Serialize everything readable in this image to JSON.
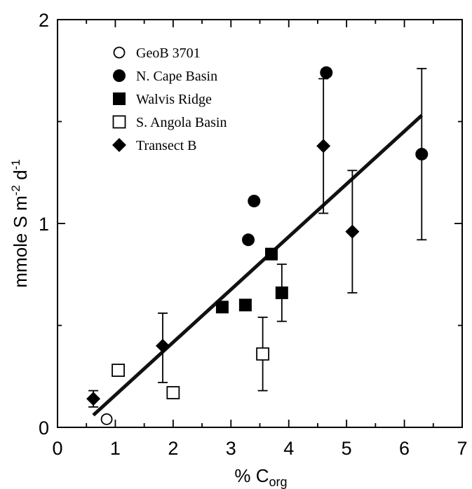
{
  "chart_data": {
    "type": "scatter",
    "xlabel": "% C",
    "xlabel_sub": "org",
    "ylabel": "mmole S m",
    "ylabel_sup1": "-2",
    "ylabel_mid": " d",
    "ylabel_sup2": "-1",
    "xlim": [
      0,
      7
    ],
    "ylim": [
      0,
      2
    ],
    "x_ticks": [
      "0",
      "1",
      "2",
      "3",
      "4",
      "5",
      "6",
      "7"
    ],
    "y_ticks": [
      "0",
      "1",
      "2"
    ],
    "legend_position": "top-left",
    "series": [
      {
        "name": "GeoB 3701",
        "marker": "circle-open",
        "points": [
          {
            "x": 0.85,
            "y": 0.04
          }
        ]
      },
      {
        "name": "N. Cape Basin",
        "marker": "circle-filled",
        "points": [
          {
            "x": 3.3,
            "y": 0.92
          },
          {
            "x": 3.4,
            "y": 1.11
          },
          {
            "x": 4.65,
            "y": 1.74
          },
          {
            "x": 6.3,
            "y": 1.34,
            "err_low": 0.92,
            "err_high": 1.76
          }
        ]
      },
      {
        "name": "Walvis Ridge",
        "marker": "square-filled",
        "points": [
          {
            "x": 2.85,
            "y": 0.59
          },
          {
            "x": 3.25,
            "y": 0.6
          },
          {
            "x": 3.7,
            "y": 0.85
          },
          {
            "x": 3.88,
            "y": 0.66,
            "err_low": 0.52,
            "err_high": 0.8
          }
        ]
      },
      {
        "name": "S. Angola Basin",
        "marker": "square-open",
        "points": [
          {
            "x": 1.05,
            "y": 0.28
          },
          {
            "x": 2.0,
            "y": 0.17
          },
          {
            "x": 3.55,
            "y": 0.36,
            "err_low": 0.18,
            "err_high": 0.54
          }
        ]
      },
      {
        "name": "Transect B",
        "marker": "diamond-filled",
        "points": [
          {
            "x": 0.62,
            "y": 0.14,
            "err_low": 0.1,
            "err_high": 0.18
          },
          {
            "x": 1.82,
            "y": 0.4,
            "err_low": 0.22,
            "err_high": 0.56
          },
          {
            "x": 4.6,
            "y": 1.38,
            "err_low": 1.05,
            "err_high": 1.71
          },
          {
            "x": 5.1,
            "y": 0.96,
            "err_low": 0.66,
            "err_high": 1.26
          }
        ]
      }
    ],
    "regression_line": {
      "x1": 0.62,
      "y1": 0.06,
      "x2": 6.3,
      "y2": 1.53
    }
  }
}
